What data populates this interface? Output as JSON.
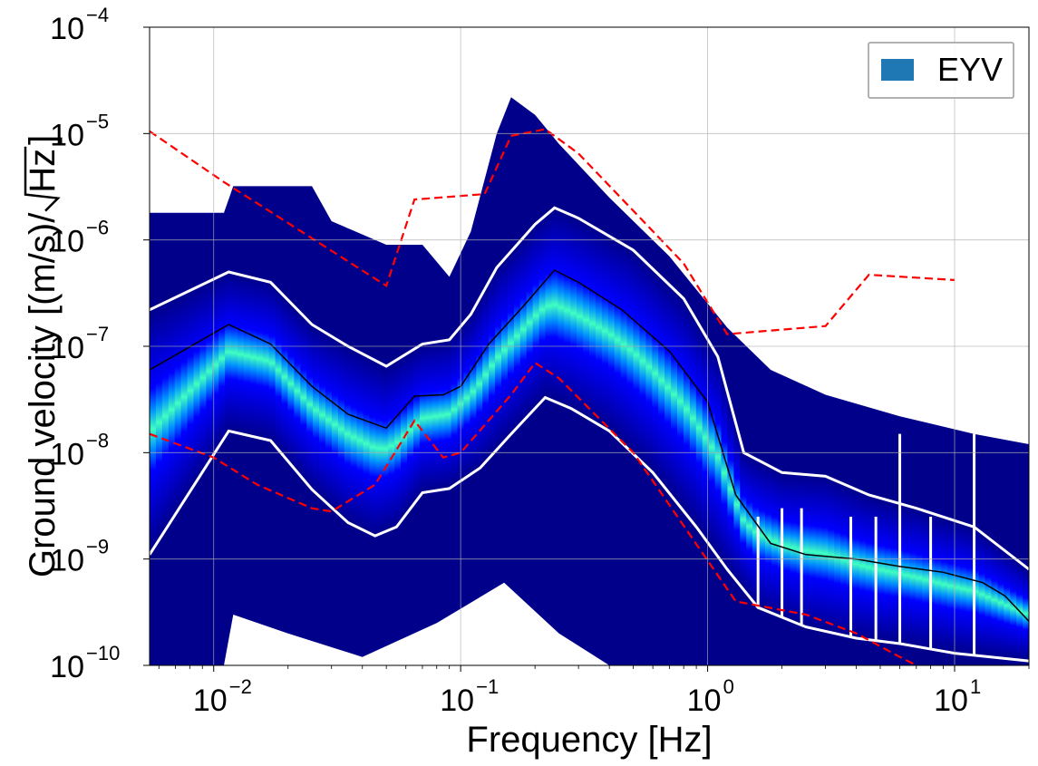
{
  "chart_data": {
    "type": "heatmap",
    "xlabel": "Frequency [Hz]",
    "ylabel_text": "Ground velocity [(m/s)/",
    "ylabel_sqrt": "Hz",
    "ylabel_close": "]",
    "x_scale": "log",
    "y_scale": "log",
    "xlim": [
      0.0055,
      20
    ],
    "ylim": [
      1e-10,
      0.0001
    ],
    "grid": true,
    "legend_position": "top-right",
    "x_ticks": [
      {
        "value": 0.01,
        "base": "10",
        "exp": "−2"
      },
      {
        "value": 0.1,
        "base": "10",
        "exp": "−1"
      },
      {
        "value": 1,
        "base": "10",
        "exp": "0"
      },
      {
        "value": 10,
        "base": "10",
        "exp": "1"
      }
    ],
    "y_ticks": [
      {
        "value": 1e-10,
        "base": "10",
        "exp": "−10"
      },
      {
        "value": 1e-09,
        "base": "10",
        "exp": "−9"
      },
      {
        "value": 1e-08,
        "base": "10",
        "exp": "−8"
      },
      {
        "value": 1e-07,
        "base": "10",
        "exp": "−7"
      },
      {
        "value": 1e-06,
        "base": "10",
        "exp": "−6"
      },
      {
        "value": 1e-05,
        "base": "10",
        "exp": "−5"
      },
      {
        "value": 0.0001,
        "base": "10",
        "exp": "−4"
      }
    ],
    "legend": [
      {
        "label": "EYV",
        "color": "#1f77b4"
      }
    ],
    "colors": {
      "envelope": "#00008b",
      "percentile": "#ffffff",
      "median": "#000000",
      "model": "#ff0000",
      "colormap": [
        "#00008b",
        "#0000ff",
        "#0080ff",
        "#00e0ff",
        "#60ffa0",
        "#e0ff20"
      ]
    },
    "density_envelope": {
      "upper": [
        [
          0.0055,
          1.8e-06
        ],
        [
          0.011,
          1.8e-06
        ],
        [
          0.012,
          3.2e-06
        ],
        [
          0.025,
          3.2e-06
        ],
        [
          0.03,
          1.5e-06
        ],
        [
          0.05,
          9e-07
        ],
        [
          0.07,
          9e-07
        ],
        [
          0.09,
          4.5e-07
        ],
        [
          0.11,
          1.2e-06
        ],
        [
          0.14,
          1e-05
        ],
        [
          0.16,
          2.2e-05
        ],
        [
          0.2,
          1.5e-05
        ],
        [
          0.25,
          8e-06
        ],
        [
          0.4,
          2.5e-06
        ],
        [
          0.7,
          7e-07
        ],
        [
          1.2,
          1.5e-07
        ],
        [
          1.8,
          6e-08
        ],
        [
          3,
          3.5e-08
        ],
        [
          6,
          2.2e-08
        ],
        [
          12,
          1.5e-08
        ],
        [
          20,
          1.2e-08
        ]
      ],
      "lower": [
        [
          0.0055,
          1e-10
        ],
        [
          0.011,
          1e-10
        ],
        [
          0.012,
          3e-10
        ],
        [
          0.02,
          2e-10
        ],
        [
          0.04,
          1.2e-10
        ],
        [
          0.08,
          2.5e-10
        ],
        [
          0.15,
          6e-10
        ],
        [
          0.25,
          2e-10
        ],
        [
          0.4,
          1e-10
        ],
        [
          20,
          1e-10
        ]
      ]
    },
    "series": [
      {
        "role": "median",
        "points": [
          [
            0.0055,
            6e-08
          ],
          [
            0.0115,
            1.6e-07
          ],
          [
            0.017,
            1.05e-07
          ],
          [
            0.025,
            4.2e-08
          ],
          [
            0.035,
            2.3e-08
          ],
          [
            0.05,
            1.7e-08
          ],
          [
            0.065,
            3.4e-08
          ],
          [
            0.085,
            3.5e-08
          ],
          [
            0.1,
            4.2e-08
          ],
          [
            0.13,
            1.05e-07
          ],
          [
            0.18,
            2.4e-07
          ],
          [
            0.24,
            5.2e-07
          ],
          [
            0.3,
            4e-07
          ],
          [
            0.45,
            2.2e-07
          ],
          [
            0.7,
            9e-08
          ],
          [
            1.0,
            3e-08
          ],
          [
            1.3,
            4e-09
          ],
          [
            1.8,
            1.4e-09
          ],
          [
            2.5,
            1.1e-09
          ],
          [
            4,
            1e-09
          ],
          [
            6,
            8.5e-10
          ],
          [
            9,
            7.5e-10
          ],
          [
            13,
            6e-10
          ],
          [
            16,
            4.5e-10
          ],
          [
            20,
            2.6e-10
          ]
        ]
      },
      {
        "role": "upper-percentile",
        "points": [
          [
            0.0055,
            2.2e-07
          ],
          [
            0.0115,
            5e-07
          ],
          [
            0.017,
            4e-07
          ],
          [
            0.025,
            1.6e-07
          ],
          [
            0.035,
            1e-07
          ],
          [
            0.05,
            6.5e-08
          ],
          [
            0.07,
            1.05e-07
          ],
          [
            0.09,
            1.15e-07
          ],
          [
            0.11,
            2e-07
          ],
          [
            0.14,
            5.5e-07
          ],
          [
            0.2,
            1.4e-06
          ],
          [
            0.24,
            2e-06
          ],
          [
            0.3,
            1.6e-06
          ],
          [
            0.5,
            8e-07
          ],
          [
            0.8,
            2.8e-07
          ],
          [
            1.1,
            8e-08
          ],
          [
            1.4,
            1e-08
          ],
          [
            2,
            6.5e-09
          ],
          [
            3,
            6e-09
          ],
          [
            4.5,
            4e-09
          ],
          [
            7,
            3e-09
          ],
          [
            12,
            2e-09
          ],
          [
            20,
            8e-10
          ]
        ]
      },
      {
        "role": "lower-percentile",
        "points": [
          [
            0.0055,
            1.1e-09
          ],
          [
            0.0115,
            1.6e-08
          ],
          [
            0.017,
            1.3e-08
          ],
          [
            0.025,
            4.5e-09
          ],
          [
            0.035,
            2.2e-09
          ],
          [
            0.045,
            1.65e-09
          ],
          [
            0.055,
            2e-09
          ],
          [
            0.07,
            4.2e-09
          ],
          [
            0.09,
            4.6e-09
          ],
          [
            0.12,
            7.2e-09
          ],
          [
            0.16,
            1.5e-08
          ],
          [
            0.22,
            3.3e-08
          ],
          [
            0.28,
            2.6e-08
          ],
          [
            0.4,
            1.6e-08
          ],
          [
            0.6,
            6.5e-09
          ],
          [
            0.9,
            2e-09
          ],
          [
            1.2,
            8e-10
          ],
          [
            1.6,
            3.5e-10
          ],
          [
            2.5,
            2.3e-10
          ],
          [
            4,
            1.8e-10
          ],
          [
            6,
            1.6e-10
          ],
          [
            10,
            1.3e-10
          ],
          [
            20,
            1.1e-10
          ]
        ]
      },
      {
        "role": "high-noise-model",
        "dashed": true,
        "points": [
          [
            0.0055,
            1.05e-05
          ],
          [
            0.011,
            3.5e-06
          ],
          [
            0.05,
            3.7e-07
          ],
          [
            0.065,
            2.4e-06
          ],
          [
            0.125,
            2.7e-06
          ],
          [
            0.16,
            9.5e-06
          ],
          [
            0.22,
            1.1e-05
          ],
          [
            0.3,
            6.5e-06
          ],
          [
            0.8,
            6e-07
          ],
          [
            1.2,
            1.3e-07
          ],
          [
            3,
            1.55e-07
          ],
          [
            4.5,
            4.7e-07
          ],
          [
            10,
            4.2e-07
          ]
        ]
      },
      {
        "role": "low-noise-model",
        "dashed": true,
        "points": [
          [
            0.0055,
            1.5e-08
          ],
          [
            0.01,
            9e-09
          ],
          [
            0.015,
            5e-09
          ],
          [
            0.025,
            3e-09
          ],
          [
            0.03,
            2.8e-09
          ],
          [
            0.045,
            5e-09
          ],
          [
            0.065,
            2e-08
          ],
          [
            0.085,
            9e-09
          ],
          [
            0.1,
            1e-08
          ],
          [
            0.16,
            3.5e-08
          ],
          [
            0.2,
            7e-08
          ],
          [
            0.25,
            5e-08
          ],
          [
            0.5,
            1e-08
          ],
          [
            1.3,
            4e-10
          ],
          [
            2.5,
            3e-10
          ],
          [
            4,
            2e-10
          ],
          [
            6,
            1.2e-10
          ],
          [
            7,
            1e-10
          ]
        ]
      }
    ],
    "spikes": [
      {
        "x": 1.6,
        "top": 2.5e-09
      },
      {
        "x": 2.0,
        "top": 3e-09
      },
      {
        "x": 2.4,
        "top": 3e-09
      },
      {
        "x": 3.8,
        "top": 2.5e-09
      },
      {
        "x": 4.8,
        "top": 2.5e-09
      },
      {
        "x": 6.0,
        "top": 1.5e-08
      },
      {
        "x": 8.0,
        "top": 2.5e-09
      },
      {
        "x": 12.0,
        "top": 1.5e-08
      }
    ]
  }
}
